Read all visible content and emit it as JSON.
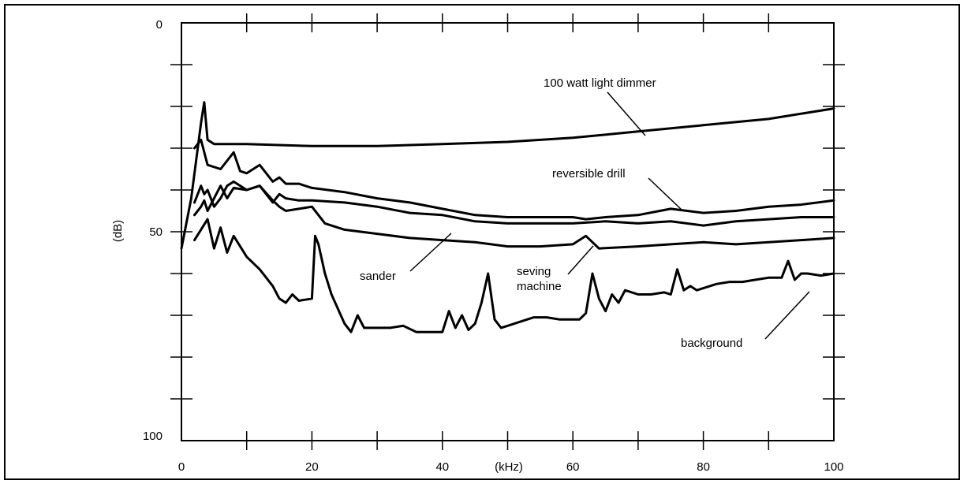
{
  "chart_data": {
    "type": "line",
    "xlabel": "(kHz)",
    "ylabel": "(dB)",
    "xlim": [
      0,
      100
    ],
    "ylim": [
      0,
      100
    ],
    "y_inverted": true,
    "x_ticks": [
      0,
      20,
      40,
      60,
      80,
      100
    ],
    "y_ticks": [
      0,
      50,
      100
    ],
    "grid": false,
    "series": [
      {
        "name": "100 watt light dimmer",
        "x": [
          0,
          1.5,
          3,
          3.5,
          4,
          5,
          10,
          20,
          30,
          40,
          50,
          60,
          70,
          80,
          90,
          100
        ],
        "y": [
          54,
          42,
          24,
          19,
          28,
          29,
          29,
          29.5,
          29.5,
          29,
          28.5,
          27.5,
          26,
          24.5,
          23,
          20.5
        ]
      },
      {
        "name": "reversible drill",
        "x": [
          2,
          3,
          4,
          6,
          8,
          9,
          10,
          12,
          14,
          15,
          16,
          18,
          20,
          25,
          30,
          35,
          40,
          45,
          50,
          55,
          60,
          62,
          65,
          70,
          75,
          80,
          85,
          90,
          95,
          100
        ],
        "y": [
          30,
          28,
          34,
          35,
          31,
          35.5,
          36,
          34,
          38,
          37,
          38.5,
          38.5,
          39.5,
          40.5,
          42,
          43,
          44.5,
          46,
          46.5,
          46.5,
          46.5,
          47,
          46.5,
          46,
          44.5,
          45.5,
          45,
          44,
          43.5,
          42.5
        ]
      },
      {
        "name": "sander",
        "x": [
          2,
          3,
          3.5,
          4,
          5,
          6,
          7,
          8,
          10,
          12,
          14,
          15,
          16,
          18,
          20,
          25,
          30,
          35,
          40,
          45,
          50,
          55,
          60,
          65,
          70,
          75,
          80,
          85,
          90,
          95,
          100
        ],
        "y": [
          43,
          39,
          41,
          40,
          44,
          42,
          39,
          38,
          40,
          39,
          43,
          41,
          42,
          42.5,
          42.5,
          43,
          44,
          45.5,
          46,
          47.5,
          48,
          48,
          48,
          47.5,
          48,
          47.5,
          48.5,
          47.5,
          47,
          46.5,
          46.5
        ]
      },
      {
        "name": "seving machine",
        "x": [
          2,
          3,
          3.5,
          4,
          5,
          6,
          7,
          8,
          10,
          12,
          14,
          15,
          16,
          18,
          20,
          22,
          25,
          30,
          35,
          40,
          45,
          50,
          55,
          60,
          62,
          64,
          70,
          75,
          80,
          85,
          90,
          95,
          100
        ],
        "y": [
          46,
          44,
          42.5,
          45,
          42,
          39,
          42,
          39.5,
          40,
          39,
          42.5,
          44,
          45,
          44.5,
          44,
          48,
          49.5,
          50.5,
          51.5,
          52,
          52.5,
          53.5,
          53.5,
          53,
          51,
          54,
          53.5,
          53,
          52.5,
          53,
          52.5,
          52,
          51.5
        ]
      },
      {
        "name": "background",
        "x": [
          2,
          4,
          5,
          6,
          7,
          8,
          10,
          12,
          14,
          15,
          16,
          17,
          18,
          20,
          20.5,
          21,
          22,
          23,
          25,
          26,
          27,
          28,
          30,
          32,
          34,
          36,
          40,
          41,
          42,
          43,
          44,
          45,
          46,
          47,
          48,
          49,
          50,
          52,
          54,
          56,
          58,
          60,
          61,
          62,
          63,
          64,
          65,
          66,
          67,
          68,
          70,
          72,
          74,
          75,
          76,
          77,
          78,
          79,
          80,
          82,
          84,
          86,
          88,
          90,
          91,
          92,
          93,
          94,
          95,
          96,
          98,
          100
        ],
        "y": [
          52,
          47,
          54,
          49,
          55,
          51,
          56,
          59,
          63,
          66,
          67,
          65,
          66.5,
          66,
          51,
          53,
          60,
          65,
          72,
          74,
          70,
          73,
          73,
          73,
          72.5,
          74,
          74,
          69,
          73,
          70,
          73.5,
          72,
          67,
          60,
          71,
          73,
          72.5,
          71.5,
          70.5,
          70.5,
          71,
          71,
          71,
          69.5,
          60,
          66,
          69,
          65,
          67,
          64,
          65,
          65,
          64.5,
          65,
          59,
          64,
          63,
          64,
          63.5,
          62.5,
          62,
          62,
          61.5,
          61,
          61,
          61,
          57,
          61.5,
          60,
          60,
          60.5,
          60
        ]
      }
    ],
    "annotations": {
      "dimmer": "100 watt light dimmer",
      "drill": "reversible drill",
      "sander": "sander",
      "seving_line1": "seving",
      "seving_line2": "machine",
      "background": "background"
    }
  }
}
